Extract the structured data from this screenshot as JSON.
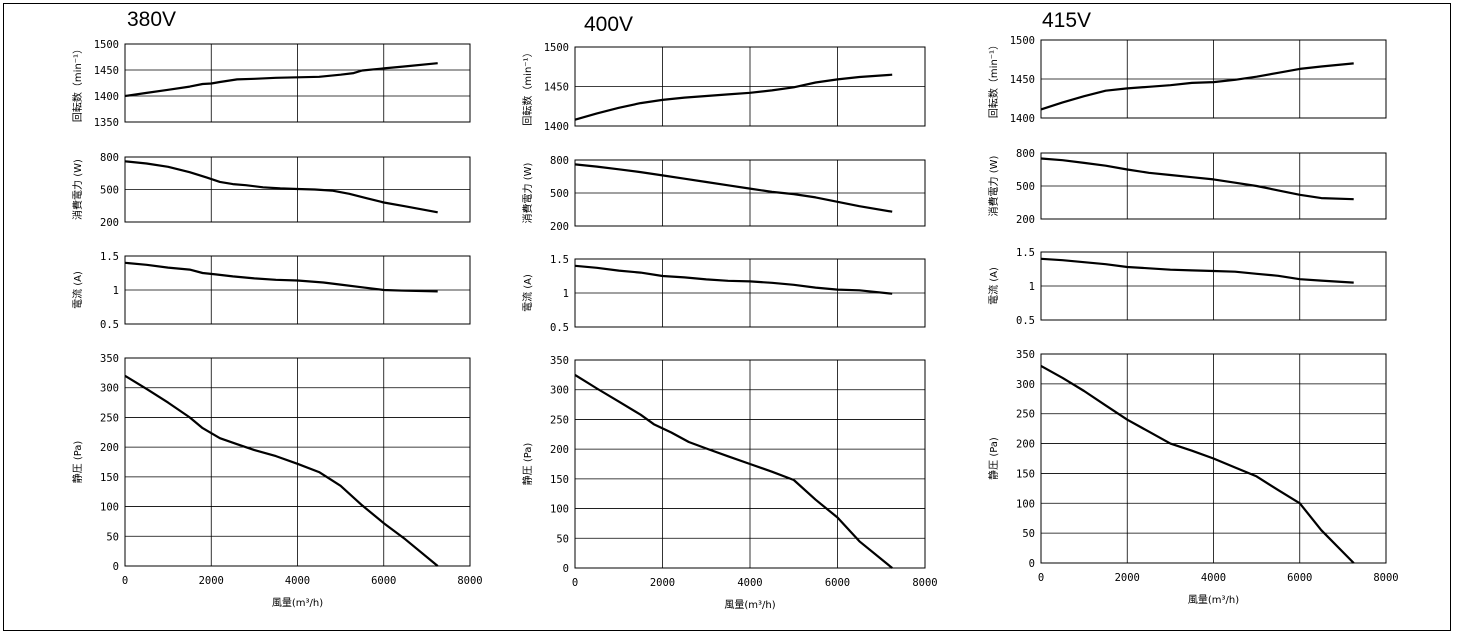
{
  "xlabel": "風量(m³/h)",
  "x_ticks": [
    "0",
    "2000",
    "4000",
    "6000",
    "8000"
  ],
  "chart_data": [
    {
      "type": "line",
      "title": "380V",
      "xlabel": "風量(m³/h)",
      "xlim": [
        0,
        8000
      ],
      "panels": [
        {
          "ylabel": "回転数（min⁻¹）",
          "ylim": [
            1350,
            1500
          ],
          "yticks": [
            "1350",
            "1400",
            "1450",
            "1500"
          ],
          "x": [
            0,
            500,
            1000,
            1500,
            1800,
            2000,
            2200,
            2600,
            3000,
            3500,
            4000,
            4500,
            5000,
            5300,
            5500,
            6000,
            6500,
            7250
          ],
          "y": [
            1400,
            1406,
            1412,
            1418,
            1423,
            1424,
            1427,
            1432,
            1433,
            1435,
            1436,
            1437,
            1441,
            1444,
            1449,
            1453,
            1457,
            1463
          ]
        },
        {
          "ylabel": "消費電力 (W)",
          "ylim": [
            200,
            800
          ],
          "yticks": [
            "200",
            "500",
            "800"
          ],
          "x": [
            0,
            500,
            1000,
            1500,
            1900,
            2200,
            2500,
            2800,
            3200,
            3600,
            4000,
            4400,
            4800,
            5200,
            5600,
            6000,
            6500,
            7250
          ],
          "y": [
            760,
            740,
            710,
            660,
            610,
            570,
            550,
            540,
            520,
            510,
            505,
            500,
            490,
            460,
            420,
            380,
            345,
            290
          ]
        },
        {
          "ylabel": "電流 (A)",
          "ylim": [
            0.5,
            1.5
          ],
          "yticks": [
            "0.5",
            "1",
            "1.5"
          ],
          "x": [
            0,
            500,
            1000,
            1500,
            1800,
            2100,
            2500,
            3000,
            3500,
            4000,
            4600,
            5000,
            5500,
            6000,
            6500,
            7250
          ],
          "y": [
            1.4,
            1.37,
            1.33,
            1.3,
            1.25,
            1.23,
            1.2,
            1.17,
            1.15,
            1.14,
            1.11,
            1.08,
            1.04,
            1.0,
            0.99,
            0.98
          ]
        },
        {
          "ylabel": "静圧 (Pa)",
          "ylim": [
            0,
            350
          ],
          "yticks": [
            "0",
            "50",
            "100",
            "150",
            "200",
            "250",
            "300",
            "350"
          ],
          "x": [
            0,
            500,
            1000,
            1500,
            1800,
            2200,
            2600,
            3000,
            3500,
            4000,
            4500,
            5000,
            5500,
            6000,
            6500,
            7250
          ],
          "y": [
            320,
            298,
            275,
            250,
            232,
            215,
            205,
            195,
            185,
            172,
            158,
            135,
            102,
            72,
            45,
            0
          ]
        }
      ]
    },
    {
      "type": "line",
      "title": "400V",
      "xlabel": "風量(m³/h)",
      "xlim": [
        0,
        8000
      ],
      "panels": [
        {
          "ylabel": "回転数（min⁻¹）",
          "ylim": [
            1400,
            1500
          ],
          "yticks": [
            "1400",
            "1450",
            "1500"
          ],
          "x": [
            0,
            500,
            1000,
            1500,
            2000,
            2500,
            3000,
            3500,
            4000,
            4500,
            5000,
            5500,
            6000,
            6500,
            7250
          ],
          "y": [
            1408,
            1416,
            1423,
            1429,
            1433,
            1436,
            1438,
            1440,
            1442,
            1445,
            1449,
            1455,
            1459,
            1462,
            1465
          ]
        },
        {
          "ylabel": "消費電力 (W)",
          "ylim": [
            200,
            800
          ],
          "yticks": [
            "200",
            "500",
            "800"
          ],
          "x": [
            0,
            500,
            1000,
            1500,
            2000,
            2500,
            3000,
            3500,
            4000,
            4500,
            5000,
            5500,
            6000,
            6500,
            7250
          ],
          "y": [
            760,
            740,
            715,
            690,
            660,
            630,
            600,
            570,
            540,
            510,
            490,
            460,
            420,
            380,
            330
          ]
        },
        {
          "ylabel": "電流 (A)",
          "ylim": [
            0.5,
            1.5
          ],
          "yticks": [
            "0.5",
            "1",
            "1.5"
          ],
          "x": [
            0,
            500,
            1000,
            1500,
            2000,
            2500,
            3000,
            3500,
            4000,
            4500,
            5000,
            5500,
            6000,
            6500,
            7250
          ],
          "y": [
            1.4,
            1.37,
            1.33,
            1.3,
            1.25,
            1.23,
            1.2,
            1.18,
            1.17,
            1.15,
            1.12,
            1.08,
            1.05,
            1.04,
            0.99
          ]
        },
        {
          "ylabel": "静圧 (Pa)",
          "ylim": [
            0,
            350
          ],
          "yticks": [
            "0",
            "50",
            "100",
            "150",
            "200",
            "250",
            "300",
            "350"
          ],
          "x": [
            0,
            500,
            1000,
            1500,
            1800,
            2200,
            2600,
            3000,
            3500,
            4000,
            4500,
            5000,
            5500,
            6000,
            6500,
            7250
          ],
          "y": [
            325,
            302,
            280,
            258,
            242,
            228,
            212,
            201,
            188,
            175,
            162,
            148,
            115,
            85,
            45,
            0
          ]
        }
      ]
    },
    {
      "type": "line",
      "title": "415V",
      "xlabel": "風量(m³/h)",
      "xlim": [
        0,
        8000
      ],
      "panels": [
        {
          "ylabel": "回転数（min⁻¹）",
          "ylim": [
            1400,
            1500
          ],
          "yticks": [
            "1400",
            "1450",
            "1500"
          ],
          "x": [
            0,
            500,
            1000,
            1500,
            2000,
            2500,
            3000,
            3500,
            4000,
            4500,
            5000,
            5500,
            6000,
            6500,
            7250
          ],
          "y": [
            1411,
            1420,
            1428,
            1435,
            1438,
            1440,
            1442,
            1445,
            1446,
            1449,
            1453,
            1458,
            1463,
            1466,
            1470
          ]
        },
        {
          "ylabel": "消費電力 (W)",
          "ylim": [
            200,
            800
          ],
          "yticks": [
            "200",
            "500",
            "800"
          ],
          "x": [
            0,
            500,
            1000,
            1500,
            2000,
            2500,
            3000,
            3500,
            4000,
            4500,
            5000,
            5500,
            6000,
            6500,
            7250
          ],
          "y": [
            750,
            735,
            710,
            685,
            650,
            620,
            600,
            580,
            560,
            530,
            500,
            460,
            420,
            390,
            380
          ]
        },
        {
          "ylabel": "電流 (A)",
          "ylim": [
            0.5,
            1.5
          ],
          "yticks": [
            "0.5",
            "1",
            "1.5"
          ],
          "x": [
            0,
            500,
            1000,
            1500,
            2000,
            2500,
            3000,
            3500,
            4000,
            4500,
            5000,
            5500,
            6000,
            6500,
            7250
          ],
          "y": [
            1.4,
            1.38,
            1.35,
            1.32,
            1.28,
            1.26,
            1.24,
            1.23,
            1.22,
            1.21,
            1.18,
            1.15,
            1.1,
            1.08,
            1.05
          ]
        },
        {
          "ylabel": "静圧 (Pa)",
          "ylim": [
            0,
            350
          ],
          "yticks": [
            "0",
            "50",
            "100",
            "150",
            "200",
            "250",
            "300",
            "350"
          ],
          "x": [
            0,
            500,
            1000,
            1500,
            2000,
            2500,
            3000,
            3500,
            4000,
            4500,
            5000,
            5500,
            6000,
            6500,
            7250
          ],
          "y": [
            330,
            310,
            288,
            264,
            240,
            220,
            200,
            188,
            175,
            160,
            145,
            122,
            100,
            55,
            0
          ]
        }
      ]
    }
  ]
}
